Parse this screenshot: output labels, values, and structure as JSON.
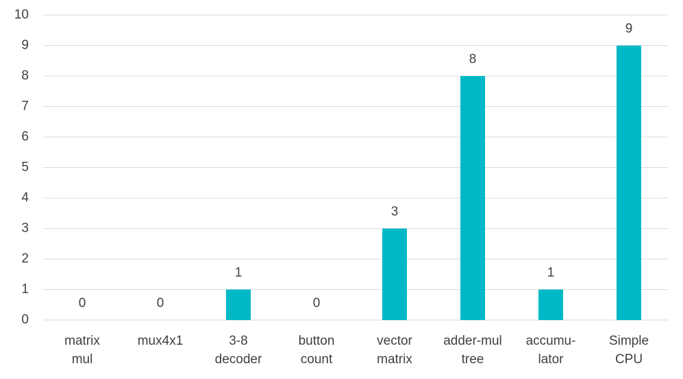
{
  "chart_data": {
    "type": "bar",
    "categories": [
      "matrix\nmul",
      "mux4x1",
      "3-8\ndecoder",
      "button\ncount",
      "vector\nmatrix",
      "adder-mul\ntree",
      "accumu-\nlator",
      "Simple\nCPU"
    ],
    "values": [
      0,
      0,
      1,
      0,
      3,
      8,
      1,
      9
    ],
    "color": "#00b9c6",
    "ylim": [
      0,
      10
    ],
    "yticks": [
      0,
      1,
      2,
      3,
      4,
      5,
      6,
      7,
      8,
      9,
      10
    ],
    "grid": true
  }
}
